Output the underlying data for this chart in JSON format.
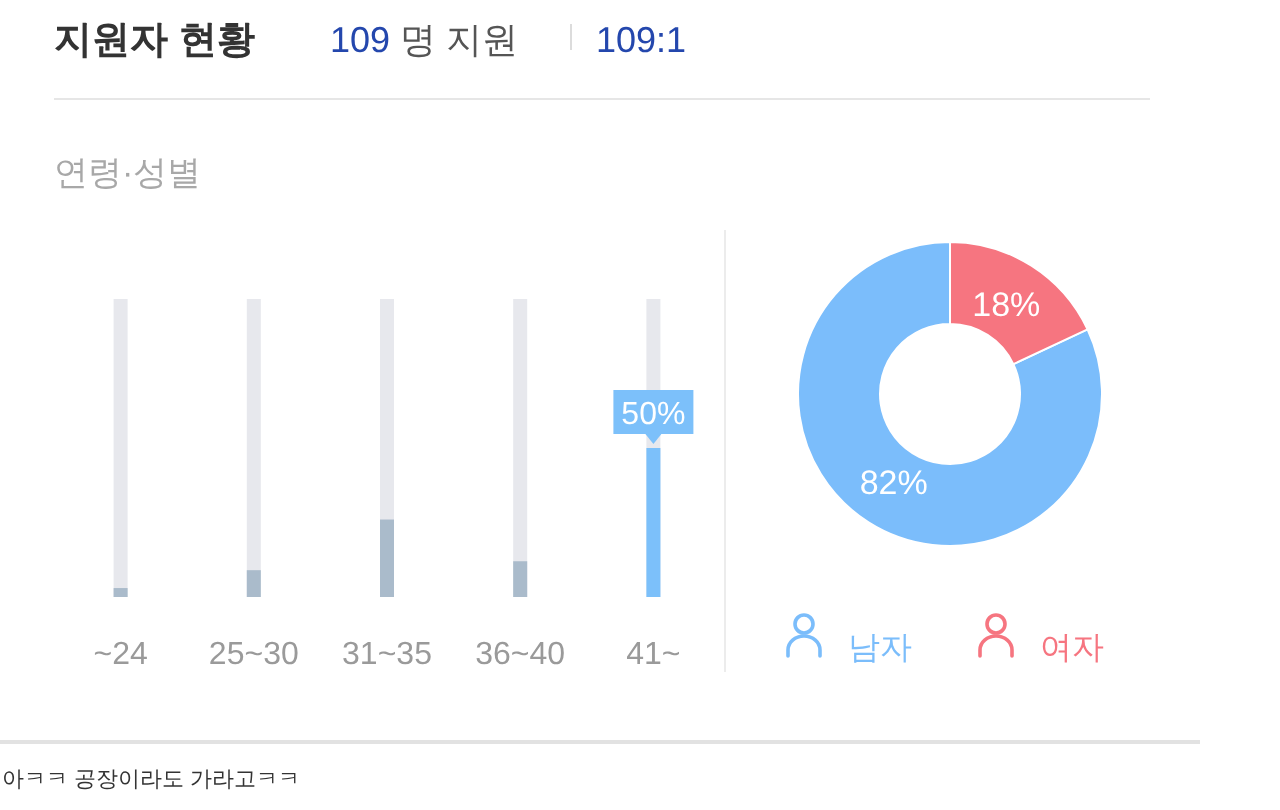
{
  "chart_data": [
    {
      "type": "bar",
      "title": "지원자 현황",
      "subtitle": "109 명 지원",
      "annotations": [
        "109:1",
        "연령·성별",
        "아ㅋㅋ 공장이라도 가라고ㅋㅋ"
      ],
      "categories": [
        "~24",
        "25~30",
        "31~35",
        "36~40",
        "41~"
      ],
      "values": [
        3,
        9,
        26,
        12,
        50
      ],
      "colors": [
        "#aabbcb",
        "#aabbcb",
        "#aabbcb",
        "#aabbcb",
        "#7cc0fa"
      ],
      "value_labels": [
        null,
        null,
        null,
        null,
        "50%"
      ],
      "tick_labels": "x"
    },
    {
      "type": "donut",
      "categories": [
        "남자",
        "여자"
      ],
      "values": [
        82,
        18
      ],
      "colors": [
        "#7bbdfb",
        "#f67580"
      ],
      "value_labels": [
        "82%",
        "18%"
      ],
      "legend": "bottom"
    }
  ]
}
